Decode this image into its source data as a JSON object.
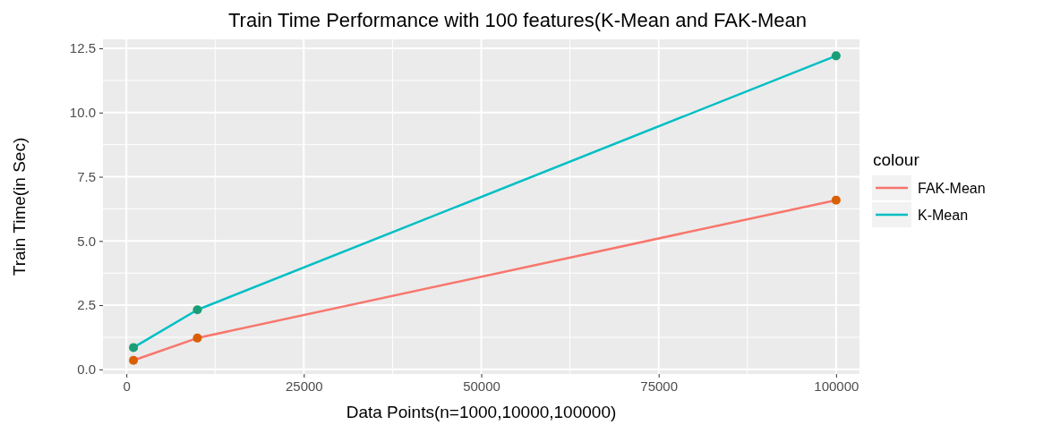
{
  "chart_data": {
    "type": "line",
    "title": "Train Time Performance with 100 features(K-Mean and FAK-Mean",
    "xlabel": "Data Points(n=1000,10000,100000)",
    "ylabel": "Train Time(in Sec)",
    "legend_title": "colour",
    "x": [
      1000,
      10000,
      100000
    ],
    "series": [
      {
        "name": "FAK-Mean",
        "color": "#f8766d",
        "marker": "none",
        "values": [
          0.35,
          1.22,
          6.59
        ]
      },
      {
        "name": "K-Mean",
        "color": "#00bfc4",
        "marker": "none",
        "values": [
          0.85,
          2.32,
          12.21
        ]
      },
      {
        "type": "scatter",
        "color": "#d95f02",
        "values": [
          0.35,
          1.22,
          6.59
        ]
      },
      {
        "type": "scatter",
        "color": "#1b9e77",
        "values": [
          0.85,
          2.32,
          12.21
        ]
      }
    ],
    "xlim": [
      -3300,
      103300
    ],
    "ylim": [
      -0.18,
      12.85
    ],
    "xticks": [
      0,
      25000,
      50000,
      75000,
      100000
    ],
    "yticks": [
      {
        "value": 0,
        "label": "0.0"
      },
      {
        "value": 2.5,
        "label": "2.5"
      },
      {
        "value": 5,
        "label": "5.0"
      },
      {
        "value": 7.5,
        "label": "7.5"
      },
      {
        "value": 10,
        "label": "10.0"
      },
      {
        "value": 12.5,
        "label": "12.5"
      }
    ],
    "grid": true,
    "legend": "right",
    "marker": "circle",
    "line_style": "solid"
  }
}
